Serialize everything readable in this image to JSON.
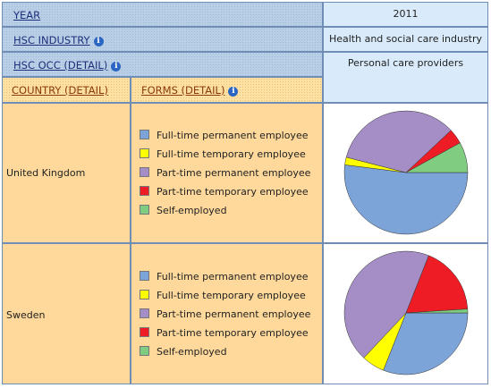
{
  "filters": {
    "year": {
      "label": "YEAR",
      "value": "2011"
    },
    "hsc_industry": {
      "label": "HSC INDUSTRY",
      "value": "Health and social care industry"
    },
    "hsc_occ": {
      "label": "HSC OCC (DETAIL)",
      "value": "Personal care providers"
    }
  },
  "columns": {
    "country": "COUNTRY (DETAIL)",
    "forms": "FORMS (DETAIL)"
  },
  "colors": {
    "Full-time permanent employee": "#7ca4d8",
    "Full-time temporary employee": "#ffff00",
    "Part-time permanent employee": "#a58ec6",
    "Part-time temporary employee": "#ee1c24",
    "Self-employed": "#80cc80"
  },
  "chart_data": [
    {
      "type": "pie",
      "country": "United Kingdom",
      "categories": [
        "Full-time permanent employee",
        "Full-time temporary employee",
        "Part-time permanent employee",
        "Part-time temporary employee",
        "Self-employed"
      ],
      "values": [
        52,
        2,
        34,
        4,
        8
      ]
    },
    {
      "type": "pie",
      "country": "Sweden",
      "categories": [
        "Full-time permanent employee",
        "Full-time temporary employee",
        "Part-time permanent employee",
        "Part-time temporary employee",
        "Self-employed"
      ],
      "values": [
        31,
        6,
        44,
        18,
        1
      ]
    }
  ]
}
